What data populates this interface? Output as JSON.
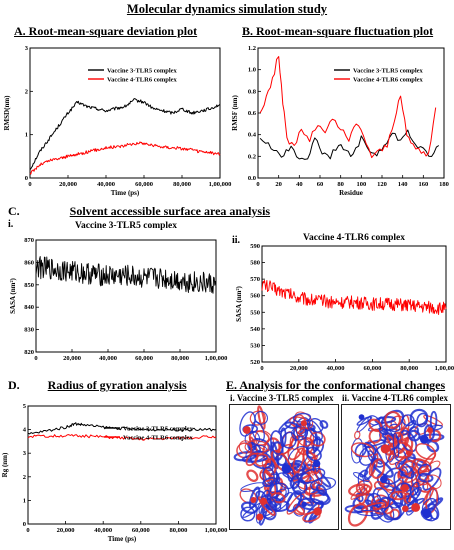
{
  "title": "Molecular dynamics simulation study",
  "sections": {
    "A": "A. Root-mean-square deviation plot",
    "B": "B. Root-mean-square fluctuation plot",
    "C": "C.",
    "C_title": "Solvent accessible surface area analysis",
    "Ci": "i.",
    "Cii": "ii.",
    "D": "D.",
    "D_title": "Radius of gyration analysis",
    "E": "E. Analysis for the conformational changes",
    "Ei": "i. Vaccine 3-TLR5 complex",
    "Eii": "ii. Vaccine 4-TLR6 complex"
  },
  "colors": {
    "black_series": "#000000",
    "red_series": "#ff0000",
    "protein_blue": "#1f2fd0",
    "protein_red": "#e03030"
  },
  "chart_data": [
    {
      "id": "rmsd",
      "type": "line",
      "xlabel": "Time (ps)",
      "ylabel": "RMSD(nm)",
      "xlim": [
        0,
        100000
      ],
      "ylim": [
        0,
        3
      ],
      "xticks": [
        0,
        20000,
        40000,
        60000,
        80000,
        100000
      ],
      "xtick_labels": [
        "0",
        "20,000",
        "40,000",
        "60,000",
        "80,000",
        "1,00,000"
      ],
      "yticks": [
        0,
        1,
        2,
        3
      ],
      "ytick_labels": [
        "0",
        "1",
        "2",
        "3"
      ],
      "legend": "top-right",
      "series": [
        {
          "name": "Vaccine 3-TLR5 complex",
          "color": "#000000",
          "x": [
            0,
            5000,
            10000,
            15000,
            20000,
            25000,
            30000,
            35000,
            40000,
            45000,
            50000,
            55000,
            60000,
            65000,
            70000,
            75000,
            80000,
            85000,
            90000,
            95000,
            100000
          ],
          "y": [
            0.2,
            0.6,
            0.9,
            1.2,
            1.5,
            1.75,
            1.65,
            1.6,
            1.55,
            1.6,
            1.65,
            1.8,
            1.75,
            1.6,
            1.55,
            1.5,
            1.6,
            1.5,
            1.55,
            1.6,
            1.7
          ]
        },
        {
          "name": "Vaccine 4-TLR6 complex",
          "color": "#ff0000",
          "x": [
            0,
            5000,
            10000,
            15000,
            20000,
            25000,
            30000,
            35000,
            40000,
            45000,
            50000,
            55000,
            60000,
            65000,
            70000,
            75000,
            80000,
            85000,
            90000,
            95000,
            100000
          ],
          "y": [
            0.1,
            0.3,
            0.4,
            0.45,
            0.5,
            0.55,
            0.6,
            0.65,
            0.7,
            0.72,
            0.75,
            0.8,
            0.8,
            0.75,
            0.72,
            0.7,
            0.68,
            0.65,
            0.6,
            0.58,
            0.55
          ]
        }
      ]
    },
    {
      "id": "rmsf",
      "type": "line",
      "xlabel": "Residue",
      "ylabel": "RMSF (nm)",
      "xlim": [
        0,
        180
      ],
      "ylim": [
        0,
        1.2
      ],
      "xticks": [
        0,
        20,
        40,
        60,
        80,
        100,
        120,
        140,
        160,
        180
      ],
      "xtick_labels": [
        "0",
        "20",
        "40",
        "60",
        "80",
        "100",
        "120",
        "140",
        "160",
        "180"
      ],
      "yticks": [
        0,
        0.2,
        0.4,
        0.6,
        0.8,
        1.0,
        1.2
      ],
      "ytick_labels": [
        "0.0",
        "0.2",
        "0.4",
        "0.6",
        "0.8",
        "1.0",
        "1.2"
      ],
      "legend": "top-right",
      "series": [
        {
          "name": "Vaccine 3-TLR5 complex",
          "color": "#000000",
          "x": [
            2,
            10,
            18,
            25,
            32,
            40,
            48,
            55,
            62,
            70,
            78,
            85,
            92,
            100,
            108,
            115,
            122,
            130,
            138,
            145,
            152,
            160,
            168,
            175
          ],
          "y": [
            0.38,
            0.3,
            0.25,
            0.2,
            0.3,
            0.18,
            0.2,
            0.35,
            0.25,
            0.2,
            0.3,
            0.25,
            0.2,
            0.38,
            0.25,
            0.2,
            0.3,
            0.4,
            0.35,
            0.45,
            0.3,
            0.25,
            0.2,
            0.3
          ]
        },
        {
          "name": "Vaccine 4-TLR6 complex",
          "color": "#ff0000",
          "x": [
            2,
            8,
            14,
            20,
            24,
            28,
            35,
            42,
            50,
            58,
            65,
            72,
            80,
            88,
            95,
            102,
            110,
            118,
            125,
            132,
            138,
            144,
            150,
            158,
            165,
            172
          ],
          "y": [
            0.6,
            0.75,
            0.9,
            1.15,
            0.7,
            0.35,
            0.3,
            0.45,
            0.35,
            0.5,
            0.4,
            0.55,
            0.45,
            0.35,
            0.5,
            0.4,
            0.2,
            0.25,
            0.3,
            0.55,
            0.75,
            0.4,
            0.3,
            0.25,
            0.2,
            0.65
          ]
        }
      ]
    },
    {
      "id": "sasa1",
      "type": "line",
      "title": "Vaccine 3-TLR5 complex",
      "xlabel": "",
      "ylabel": "SASA (nm²)",
      "xlim": [
        0,
        100000
      ],
      "ylim": [
        820,
        870
      ],
      "xticks": [
        0,
        20000,
        40000,
        60000,
        80000,
        100000
      ],
      "xtick_labels": [
        "0",
        "20,000",
        "40,000",
        "60,000",
        "80,000",
        "1,00,000"
      ],
      "yticks": [
        820,
        830,
        840,
        850,
        860,
        870
      ],
      "ytick_labels": [
        "820",
        "830",
        "840",
        "850",
        "860",
        "870"
      ],
      "series": [
        {
          "name": "",
          "color": "#000000",
          "x": [
            0,
            10000,
            20000,
            30000,
            40000,
            50000,
            60000,
            70000,
            80000,
            90000,
            100000
          ],
          "y": [
            858,
            857,
            856,
            855,
            854,
            854,
            853,
            853,
            852,
            851,
            850
          ],
          "noise": 5
        }
      ]
    },
    {
      "id": "sasa2",
      "type": "line",
      "title": "Vaccine 4-TLR6 complex",
      "xlabel": "",
      "ylabel": "SASA (nm²)",
      "xlim": [
        0,
        100000
      ],
      "ylim": [
        520,
        590
      ],
      "xticks": [
        0,
        20000,
        40000,
        60000,
        80000,
        100000
      ],
      "xtick_labels": [
        "0",
        "20,000",
        "40,000",
        "60,000",
        "80,000",
        "1,00,000"
      ],
      "yticks": [
        520,
        530,
        540,
        550,
        560,
        570,
        580,
        590
      ],
      "ytick_labels": [
        "520",
        "530",
        "540",
        "550",
        "560",
        "570",
        "580",
        "590"
      ],
      "series": [
        {
          "name": "",
          "color": "#ff0000",
          "x": [
            0,
            10000,
            20000,
            30000,
            40000,
            50000,
            60000,
            70000,
            80000,
            90000,
            100000
          ],
          "y": [
            567,
            563,
            559,
            557,
            556,
            556,
            555,
            555,
            554,
            553,
            552
          ],
          "noise": 4
        }
      ]
    },
    {
      "id": "rg",
      "type": "line",
      "xlabel": "Time (ps)",
      "ylabel": "Rg (nm)",
      "xlim": [
        0,
        100000
      ],
      "ylim": [
        0,
        5
      ],
      "xticks": [
        0,
        20000,
        40000,
        60000,
        80000,
        100000
      ],
      "xtick_labels": [
        "0",
        "20,000",
        "40,000",
        "60,000",
        "80,000",
        "1,00,000"
      ],
      "yticks": [
        0,
        1,
        2,
        3,
        4,
        5
      ],
      "ytick_labels": [
        "0",
        "1",
        "2",
        "3",
        "4",
        "5"
      ],
      "legend": "top-right",
      "series": [
        {
          "name": "Vaccine 3-TLR5 complex",
          "color": "#000000",
          "x": [
            0,
            10000,
            20000,
            25000,
            30000,
            40000,
            50000,
            60000,
            70000,
            80000,
            90000,
            100000
          ],
          "y": [
            3.8,
            3.95,
            4.1,
            4.25,
            4.2,
            4.1,
            4.05,
            4.0,
            4.0,
            4.0,
            4.0,
            4.0
          ]
        },
        {
          "name": "Vaccine 4-TLR6 complex",
          "color": "#ff0000",
          "x": [
            0,
            10000,
            20000,
            30000,
            40000,
            50000,
            60000,
            70000,
            80000,
            90000,
            100000
          ],
          "y": [
            3.7,
            3.72,
            3.75,
            3.72,
            3.7,
            3.65,
            3.6,
            3.62,
            3.65,
            3.68,
            3.7
          ]
        }
      ]
    }
  ]
}
